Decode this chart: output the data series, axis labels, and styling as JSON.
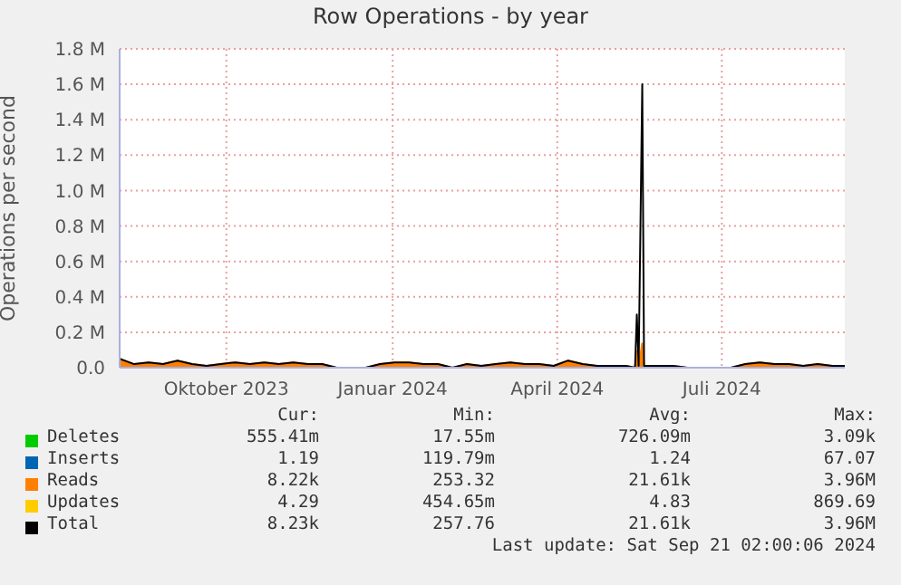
{
  "chart_data": {
    "type": "area",
    "title": "Row Operations - by year",
    "ylabel": "Operations per second",
    "x": [
      "2023-08-17",
      "2023-08-25",
      "2023-09-02",
      "2023-09-10",
      "2023-09-18",
      "2023-09-26",
      "2023-10-04",
      "2023-10-12",
      "2023-10-20",
      "2023-10-28",
      "2023-11-05",
      "2023-11-13",
      "2023-11-21",
      "2023-11-29",
      "2023-12-07",
      "2023-12-15",
      "2023-12-23",
      "2023-12-31",
      "2024-01-08",
      "2024-01-16",
      "2024-01-24",
      "2024-02-01",
      "2024-02-09",
      "2024-02-17",
      "2024-02-25",
      "2024-03-04",
      "2024-03-12",
      "2024-03-20",
      "2024-03-28",
      "2024-04-05",
      "2024-04-13",
      "2024-04-21",
      "2024-04-29",
      "2024-05-07",
      "2024-05-15",
      "2024-05-23",
      "2024-05-28",
      "2024-05-29",
      "2024-05-30",
      "2024-06-01",
      "2024-06-02",
      "2024-06-10",
      "2024-06-18",
      "2024-06-26",
      "2024-07-04",
      "2024-07-12",
      "2024-07-20",
      "2024-07-28",
      "2024-08-05",
      "2024-08-13",
      "2024-08-21",
      "2024-08-29",
      "2024-09-06",
      "2024-09-14",
      "2024-09-21"
    ],
    "series": [
      {
        "name": "Deletes",
        "color": "#00cc00",
        "values": [
          null,
          null,
          null,
          null,
          null,
          null,
          null,
          null,
          null,
          null,
          null,
          null,
          null,
          null,
          null,
          null,
          null,
          null,
          null,
          null,
          null,
          null,
          null,
          null,
          null,
          null,
          null,
          null,
          null,
          null,
          null,
          null,
          null,
          null,
          null,
          null,
          null,
          null,
          null,
          null,
          null,
          null,
          null,
          null,
          null,
          null,
          null,
          null,
          null,
          null,
          null,
          null,
          null,
          null,
          null
        ]
      },
      {
        "name": "Inserts",
        "color": "#0066b3",
        "values": [
          null,
          null,
          null,
          null,
          null,
          null,
          null,
          null,
          null,
          null,
          null,
          null,
          null,
          null,
          null,
          null,
          null,
          null,
          null,
          null,
          null,
          null,
          null,
          null,
          null,
          null,
          null,
          null,
          null,
          null,
          null,
          null,
          null,
          null,
          null,
          null,
          null,
          null,
          null,
          null,
          null,
          null,
          null,
          null,
          null,
          null,
          null,
          null,
          null,
          null,
          null,
          null,
          null,
          null,
          null
        ]
      },
      {
        "name": "Reads",
        "color": "#ff8000",
        "values": [
          50000,
          20000,
          30000,
          20000,
          40000,
          20000,
          10000,
          20000,
          30000,
          20000,
          30000,
          20000,
          30000,
          20000,
          20000,
          0,
          0,
          0,
          20000,
          30000,
          30000,
          20000,
          20000,
          0,
          20000,
          10000,
          20000,
          30000,
          20000,
          20000,
          10000,
          40000,
          20000,
          10000,
          10000,
          10000,
          0,
          100000,
          10000,
          140000,
          10000,
          10000,
          10000,
          0,
          0,
          0,
          0,
          20000,
          30000,
          20000,
          20000,
          10000,
          20000,
          10000,
          10000
        ]
      },
      {
        "name": "Updates",
        "color": "#ffcc00",
        "values": [
          null,
          null,
          null,
          null,
          null,
          null,
          null,
          null,
          null,
          null,
          null,
          null,
          null,
          null,
          null,
          null,
          null,
          null,
          null,
          null,
          null,
          null,
          null,
          null,
          null,
          null,
          null,
          null,
          null,
          null,
          null,
          null,
          null,
          null,
          null,
          null,
          null,
          null,
          null,
          null,
          null,
          null,
          null,
          null,
          null,
          null,
          null,
          null,
          null,
          null,
          null,
          null,
          null,
          null,
          null
        ]
      },
      {
        "name": "Total",
        "type": "line",
        "color": "#000000",
        "values": [
          50000,
          20000,
          30000,
          20000,
          40000,
          20000,
          10000,
          20000,
          30000,
          20000,
          30000,
          20000,
          30000,
          20000,
          20000,
          0,
          0,
          0,
          20000,
          30000,
          30000,
          20000,
          20000,
          0,
          20000,
          10000,
          20000,
          30000,
          20000,
          20000,
          10000,
          40000,
          20000,
          10000,
          10000,
          10000,
          0,
          300000,
          10000,
          1600000,
          10000,
          10000,
          10000,
          0,
          0,
          0,
          0,
          20000,
          30000,
          20000,
          20000,
          10000,
          20000,
          10000,
          10000
        ]
      }
    ],
    "xlim": [
      "2023-08-17",
      "2024-09-21"
    ],
    "xticks": [
      {
        "value": "2023-10-15",
        "label": "Oktober 2023"
      },
      {
        "value": "2024-01-15",
        "label": "Januar 2024"
      },
      {
        "value": "2024-04-15",
        "label": "April 2024"
      },
      {
        "value": "2024-07-15",
        "label": "Juli 2024"
      }
    ],
    "ylim": [
      0,
      1800000
    ],
    "yticks": [
      {
        "value": 0,
        "label": "0.0"
      },
      {
        "value": 200000,
        "label": "0.2 M"
      },
      {
        "value": 400000,
        "label": "0.4 M"
      },
      {
        "value": 600000,
        "label": "0.6 M"
      },
      {
        "value": 800000,
        "label": "0.8 M"
      },
      {
        "value": 1000000,
        "label": "1.0 M"
      },
      {
        "value": 1200000,
        "label": "1.2 M"
      },
      {
        "value": 1400000,
        "label": "1.4 M"
      },
      {
        "value": 1600000,
        "label": "1.6 M"
      },
      {
        "value": 1800000,
        "label": "1.8 M"
      }
    ],
    "grid": true,
    "legend": "bottom",
    "annotations": [
      "Cur:",
      "Min:",
      "Avg:",
      "Max:",
      "555.41m",
      "17.55m",
      "726.09m",
      "3.09k",
      "1.19",
      "119.79m",
      "1.24",
      "67.07",
      "8.22k",
      "253.32",
      "21.61k",
      "3.96M",
      "4.29",
      "454.65m",
      "4.83",
      "869.69",
      "8.23k",
      "257.76",
      "21.61k",
      "3.96M",
      "Last update: Sat Sep 21 02:00:06 2024"
    ]
  }
}
